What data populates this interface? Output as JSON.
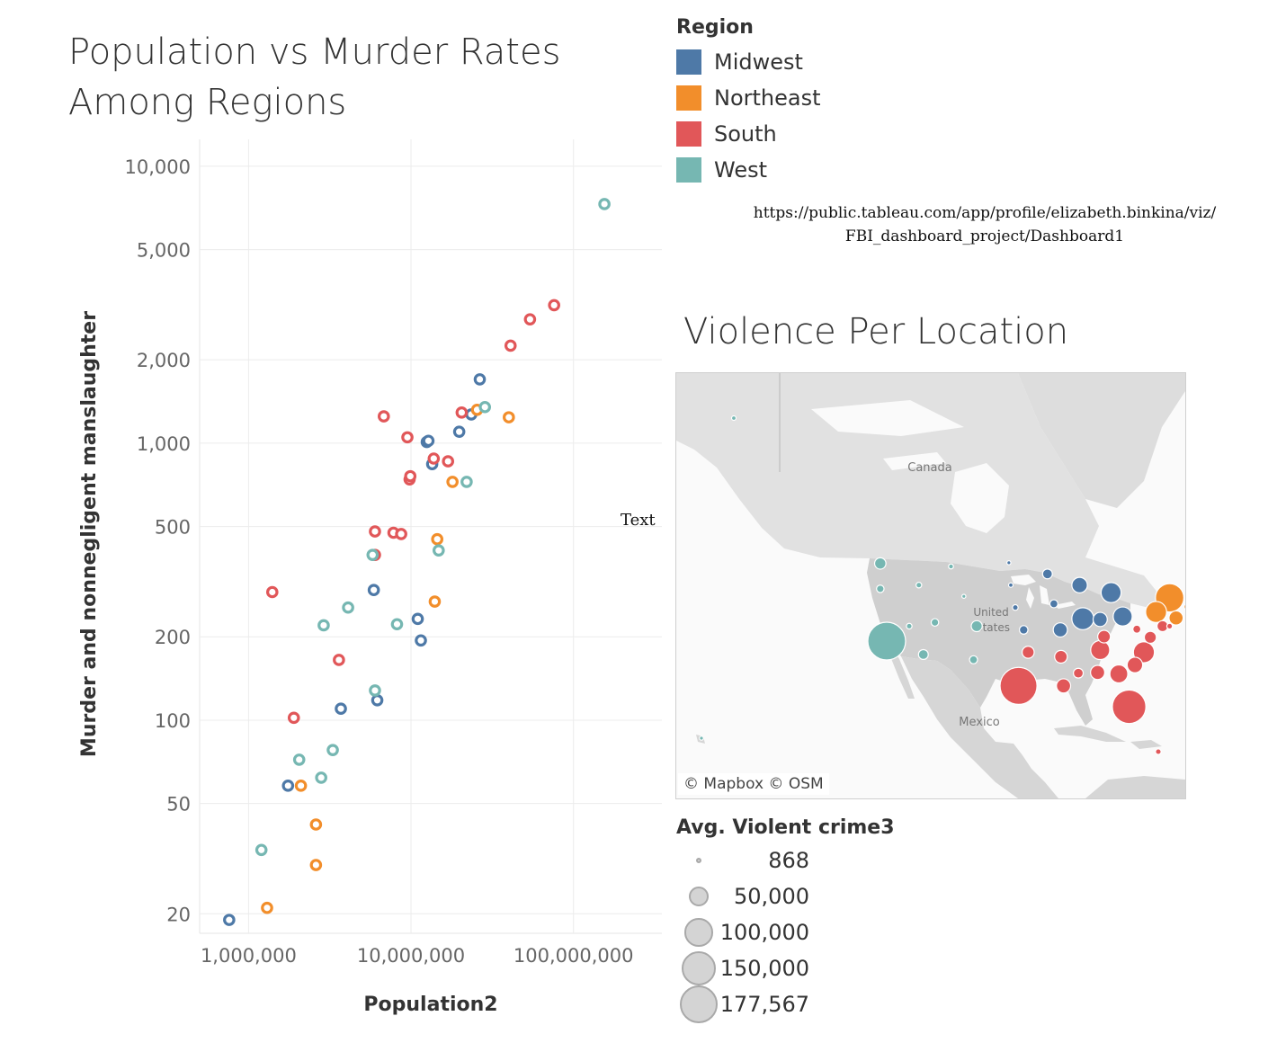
{
  "colors": {
    "Midwest": "#4e79a7",
    "Northeast": "#f28e2b",
    "South": "#e15759",
    "West": "#76b7b2"
  },
  "chart_data": {
    "type": "scatter",
    "title_lines": [
      "Population vs Murder Rates",
      "Among Regions"
    ],
    "xlabel": "Population2",
    "ylabel": "Murder and nonnegligent manslaughter",
    "x_scale": "log",
    "y_scale": "log",
    "xlim": [
      500000,
      350000000
    ],
    "ylim": [
      17,
      12500
    ],
    "x_ticks": [
      1000000,
      10000000,
      100000000
    ],
    "x_tick_labels": [
      "1,000,000",
      "10,000,000",
      "100,000,000"
    ],
    "y_ticks": [
      20,
      50,
      100,
      200,
      500,
      1000,
      2000,
      5000,
      10000
    ],
    "y_tick_labels": [
      "20",
      "50",
      "100",
      "200",
      "500",
      "1,000",
      "2,000",
      "5,000",
      "10,000"
    ],
    "grid": true,
    "series": [
      {
        "name": "Midwest",
        "points": [
          [
            760000,
            19
          ],
          [
            1750000,
            58
          ],
          [
            3700000,
            110
          ],
          [
            6200000,
            118
          ],
          [
            5900000,
            295
          ],
          [
            11000000,
            232
          ],
          [
            11500000,
            194
          ],
          [
            12500000,
            1010
          ],
          [
            12800000,
            1020
          ],
          [
            13500000,
            840
          ],
          [
            19800000,
            1100
          ],
          [
            23500000,
            1270
          ],
          [
            26500000,
            1700
          ]
        ]
      },
      {
        "name": "Northeast",
        "points": [
          [
            1300000,
            21
          ],
          [
            2100000,
            58
          ],
          [
            2600000,
            42
          ],
          [
            2600000,
            30
          ],
          [
            14000000,
            268
          ],
          [
            14500000,
            450
          ],
          [
            18000000,
            725
          ],
          [
            25500000,
            1320
          ],
          [
            40000000,
            1240
          ]
        ]
      },
      {
        "name": "South",
        "points": [
          [
            1400000,
            290
          ],
          [
            1900000,
            102
          ],
          [
            3600000,
            165
          ],
          [
            6000000,
            480
          ],
          [
            6000000,
            395
          ],
          [
            6800000,
            1250
          ],
          [
            7800000,
            475
          ],
          [
            8700000,
            470
          ],
          [
            9500000,
            1050
          ],
          [
            9800000,
            740
          ],
          [
            9900000,
            760
          ],
          [
            13800000,
            880
          ],
          [
            16900000,
            860
          ],
          [
            20500000,
            1290
          ],
          [
            41000000,
            2250
          ],
          [
            54000000,
            2800
          ],
          [
            76000000,
            3150
          ]
        ]
      },
      {
        "name": "West",
        "points": [
          [
            1200000,
            34
          ],
          [
            2050000,
            72
          ],
          [
            2800000,
            62
          ],
          [
            2900000,
            220
          ],
          [
            3300000,
            78
          ],
          [
            4100000,
            255
          ],
          [
            5800000,
            395
          ],
          [
            6000000,
            128
          ],
          [
            8200000,
            222
          ],
          [
            14800000,
            410
          ],
          [
            22000000,
            725
          ],
          [
            28500000,
            1350
          ],
          [
            155000000,
            7300
          ]
        ]
      }
    ]
  },
  "legend": {
    "title": "Region",
    "items": [
      "Midwest",
      "Northeast",
      "South",
      "West"
    ]
  },
  "url_lines": [
    "https://public.tableau.com/app/profile/elizabeth.binkina/viz/",
    "FBI_dashboard_project/Dashboard1"
  ],
  "floating_text": "Text",
  "map": {
    "title": "Violence Per Location",
    "labels": {
      "canada": "Canada",
      "us": "United States",
      "mexico": "Mexico"
    },
    "credit": "© Mapbox  © OSM",
    "points": [
      {
        "region": "West",
        "value": 2500,
        "lon": -149.8,
        "lat": 61.2
      },
      {
        "region": "West",
        "value": 1000,
        "lon": -157.8,
        "lat": 21.3
      },
      {
        "region": "West",
        "value": 177567,
        "lon": -119.5,
        "lat": 37.0
      },
      {
        "region": "West",
        "value": 16000,
        "lon": -120.5,
        "lat": 47.4
      },
      {
        "region": "West",
        "value": 12000,
        "lon": -113.8,
        "lat": 35.2
      },
      {
        "region": "West",
        "value": 7000,
        "lon": -120.5,
        "lat": 44.0
      },
      {
        "region": "West",
        "value": 4000,
        "lon": -116.0,
        "lat": 39.0
      },
      {
        "region": "West",
        "value": 7000,
        "lon": -112.0,
        "lat": 39.5
      },
      {
        "region": "West",
        "value": 4000,
        "lon": -114.5,
        "lat": 44.5
      },
      {
        "region": "West",
        "value": 3000,
        "lon": -109.5,
        "lat": 47.0
      },
      {
        "region": "West",
        "value": 1500,
        "lon": -107.5,
        "lat": 43.0
      },
      {
        "region": "West",
        "value": 15000,
        "lon": -105.5,
        "lat": 39.0
      },
      {
        "region": "West",
        "value": 8000,
        "lon": -106.0,
        "lat": 34.5
      },
      {
        "region": "Midwest",
        "value": 1000,
        "lon": -100.5,
        "lat": 47.5
      },
      {
        "region": "Midwest",
        "value": 2500,
        "lon": -100.2,
        "lat": 44.5
      },
      {
        "region": "Midwest",
        "value": 4000,
        "lon": -99.5,
        "lat": 41.5
      },
      {
        "region": "Midwest",
        "value": 9000,
        "lon": -98.2,
        "lat": 38.5
      },
      {
        "region": "Midwest",
        "value": 12000,
        "lon": -94.5,
        "lat": 46.0
      },
      {
        "region": "Midwest",
        "value": 8000,
        "lon": -93.5,
        "lat": 42.0
      },
      {
        "region": "Midwest",
        "value": 25000,
        "lon": -92.5,
        "lat": 38.5
      },
      {
        "region": "Midwest",
        "value": 30000,
        "lon": -89.5,
        "lat": 44.5
      },
      {
        "region": "Midwest",
        "value": 60000,
        "lon": -89.0,
        "lat": 40.0
      },
      {
        "region": "Midwest",
        "value": 25000,
        "lon": -86.3,
        "lat": 39.9
      },
      {
        "region": "Midwest",
        "value": 50000,
        "lon": -84.6,
        "lat": 43.5
      },
      {
        "region": "Midwest",
        "value": 45000,
        "lon": -82.8,
        "lat": 40.3
      },
      {
        "region": "Northeast",
        "value": 100000,
        "lon": -75.5,
        "lat": 42.8
      },
      {
        "region": "Northeast",
        "value": 55000,
        "lon": -77.6,
        "lat": 40.9
      },
      {
        "region": "Northeast",
        "value": 25000,
        "lon": -74.5,
        "lat": 40.1
      },
      {
        "region": "Northeast",
        "value": 35000,
        "lon": -71.8,
        "lat": 42.3
      },
      {
        "region": "Northeast",
        "value": 6000,
        "lon": -72.7,
        "lat": 41.6
      },
      {
        "region": "Northeast",
        "value": 2000,
        "lon": -71.5,
        "lat": 41.7
      },
      {
        "region": "Northeast",
        "value": 1000,
        "lon": -72.6,
        "lat": 44.0
      },
      {
        "region": "Northeast",
        "value": 1500,
        "lon": -71.5,
        "lat": 43.7
      },
      {
        "region": "Northeast",
        "value": 1200,
        "lon": -69.2,
        "lat": 45.3
      },
      {
        "region": "South",
        "value": 8000,
        "lon": -80.6,
        "lat": 38.6
      },
      {
        "region": "South",
        "value": 15000,
        "lon": -76.6,
        "lat": 39.0
      },
      {
        "region": "South",
        "value": 4000,
        "lon": -75.5,
        "lat": 39.0
      },
      {
        "region": "South",
        "value": 18000,
        "lon": -78.5,
        "lat": 37.5
      },
      {
        "region": "South",
        "value": 55000,
        "lon": -79.5,
        "lat": 35.5
      },
      {
        "region": "South",
        "value": 30000,
        "lon": -80.9,
        "lat": 33.8
      },
      {
        "region": "South",
        "value": 40000,
        "lon": -83.4,
        "lat": 32.6
      },
      {
        "region": "South",
        "value": 140000,
        "lon": -81.8,
        "lat": 28.2
      },
      {
        "region": "South",
        "value": 25000,
        "lon": -86.7,
        "lat": 32.8
      },
      {
        "region": "South",
        "value": 12000,
        "lon": -89.7,
        "lat": 32.7
      },
      {
        "region": "South",
        "value": 20000,
        "lon": -85.7,
        "lat": 37.6
      },
      {
        "region": "South",
        "value": 45000,
        "lon": -86.3,
        "lat": 35.8
      },
      {
        "region": "South",
        "value": 25000,
        "lon": -92.0,
        "lat": 31.0
      },
      {
        "region": "South",
        "value": 20000,
        "lon": -92.4,
        "lat": 34.9
      },
      {
        "region": "South",
        "value": 18000,
        "lon": -97.5,
        "lat": 35.5
      },
      {
        "region": "South",
        "value": 170000,
        "lon": -99.0,
        "lat": 31.0
      },
      {
        "region": "South",
        "value": 4000,
        "lon": -66.5,
        "lat": 18.2
      }
    ]
  },
  "size_legend": {
    "title": "Avg. Violent crime3",
    "items": [
      "868",
      "50,000",
      "100,000",
      "150,000",
      "177,567"
    ],
    "values": [
      868,
      50000,
      100000,
      150000,
      177567
    ]
  }
}
